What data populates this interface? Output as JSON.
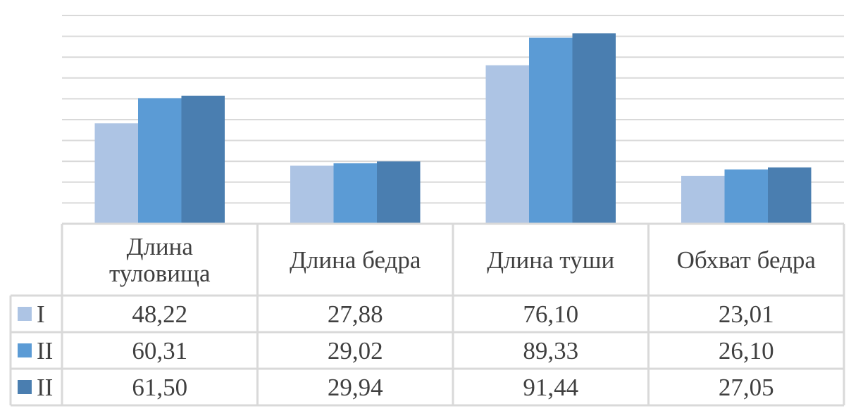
{
  "chart_data": {
    "type": "bar",
    "categories": [
      [
        "Длина",
        "туловища"
      ],
      [
        "Длина бедра"
      ],
      [
        "Длина туши"
      ],
      [
        "Обхват бедра"
      ]
    ],
    "series": [
      {
        "name": "I",
        "color": "#adc4e4",
        "values": [
          48.22,
          27.88,
          76.1,
          23.01
        ],
        "labels": [
          "48,22",
          "27,88",
          "76,10",
          "23,01"
        ]
      },
      {
        "name": "II",
        "color": "#5b9bd5",
        "values": [
          60.31,
          29.02,
          89.33,
          26.1
        ],
        "labels": [
          "60,31",
          "29,02",
          "89,33",
          "26,10"
        ]
      },
      {
        "name": "II",
        "color": "#4a7eb0",
        "values": [
          61.5,
          29.94,
          91.44,
          27.05
        ],
        "labels": [
          "61,50",
          "29,94",
          "91,44",
          "27,05"
        ]
      }
    ],
    "ylim": [
      0,
      100
    ],
    "gridlines": true,
    "legend": "data-table"
  }
}
